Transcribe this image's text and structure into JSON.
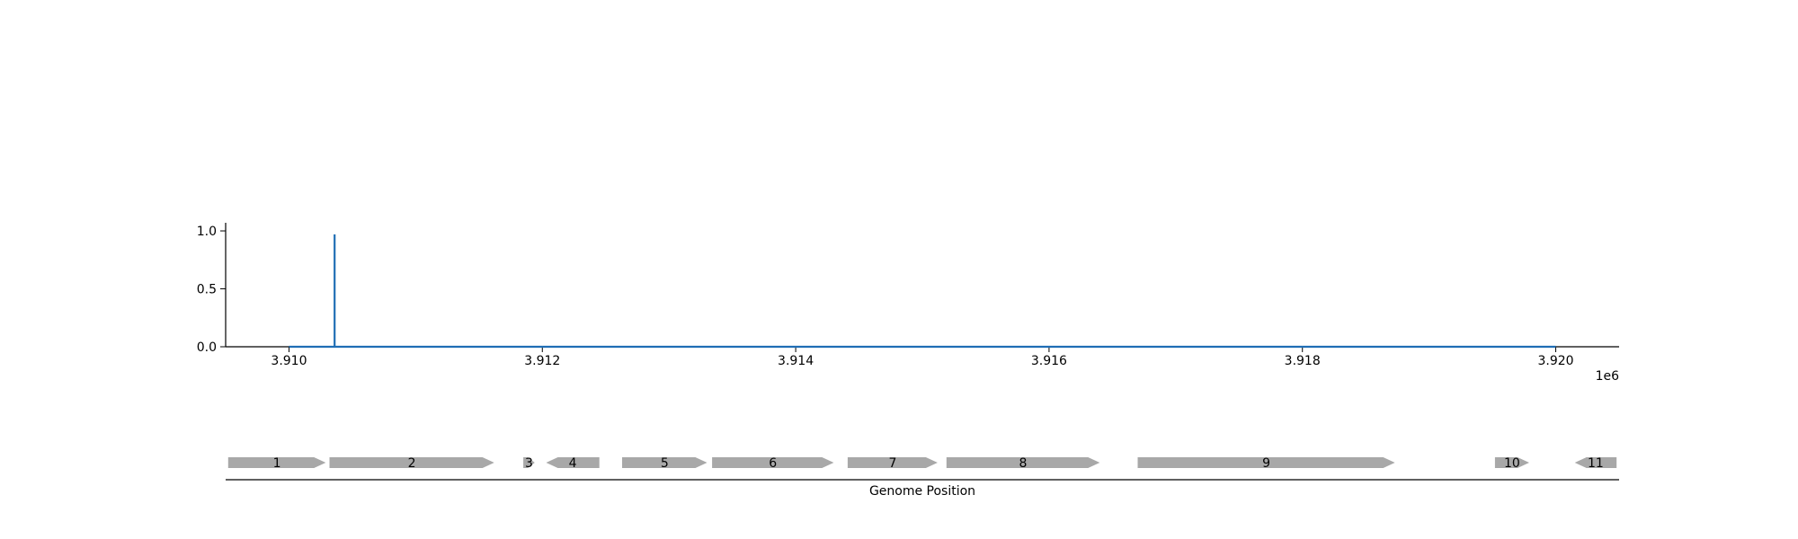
{
  "colors": {
    "signal_line": "#1f6eb5",
    "gene_fill": "#a8a8a8",
    "axis": "#000000",
    "background": "#ffffff"
  },
  "chart_data": [
    {
      "type": "line",
      "title": "",
      "xlabel": "",
      "ylabel": "",
      "x_offset_label": "1e6",
      "xlim": [
        3909500,
        3920500
      ],
      "ylim": [
        0.0,
        1.07
      ],
      "x_ticks": [
        3910000,
        3912000,
        3914000,
        3916000,
        3918000,
        3920000
      ],
      "x_tick_labels": [
        "3.910",
        "3.912",
        "3.914",
        "3.916",
        "3.918",
        "3.920"
      ],
      "y_ticks": [
        0.0,
        0.5,
        1.0
      ],
      "y_tick_labels": [
        "0.0",
        "0.5",
        "1.0"
      ],
      "grid": false,
      "series": [
        {
          "x": [
            3910000,
            3910360,
            3910360,
            3910360,
            3920000
          ],
          "y": [
            0.0,
            0.0,
            0.97,
            0.0,
            0.0
          ]
        }
      ]
    },
    {
      "type": "gene_track",
      "xlabel": "Genome Position",
      "genes": [
        {
          "label": "1",
          "start": 3909520,
          "end": 3910290,
          "strand": "+"
        },
        {
          "label": "2",
          "start": 3910320,
          "end": 3911620,
          "strand": "+"
        },
        {
          "label": "3",
          "start": 3911850,
          "end": 3911940,
          "strand": "+"
        },
        {
          "label": "4",
          "start": 3912030,
          "end": 3912450,
          "strand": "-"
        },
        {
          "label": "5",
          "start": 3912630,
          "end": 3913300,
          "strand": "+"
        },
        {
          "label": "6",
          "start": 3913340,
          "end": 3914300,
          "strand": "+"
        },
        {
          "label": "7",
          "start": 3914410,
          "end": 3915120,
          "strand": "+"
        },
        {
          "label": "8",
          "start": 3915190,
          "end": 3916400,
          "strand": "+"
        },
        {
          "label": "9",
          "start": 3916700,
          "end": 3918730,
          "strand": "+"
        },
        {
          "label": "10",
          "start": 3919520,
          "end": 3919790,
          "strand": "+"
        },
        {
          "label": "11",
          "start": 3920150,
          "end": 3920480,
          "strand": "-"
        }
      ]
    }
  ]
}
